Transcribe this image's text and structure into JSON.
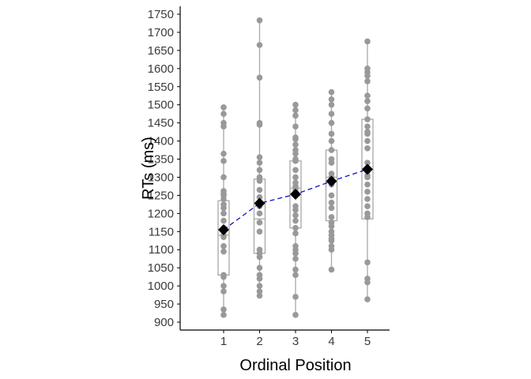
{
  "chart_data": {
    "type": "scatter",
    "xlabel": "Ordinal Position",
    "ylabel": "RTs (ms)",
    "categories": [
      "1",
      "2",
      "3",
      "4",
      "5"
    ],
    "ylim": [
      880,
      1780
    ],
    "yticks": [
      900,
      950,
      1000,
      1050,
      1100,
      1150,
      1200,
      1250,
      1300,
      1350,
      1400,
      1450,
      1500,
      1550,
      1600,
      1650,
      1700,
      1750
    ],
    "grid": false,
    "colors": {
      "points": "#999999",
      "box": "#a8a8a8",
      "mean_marker": "#000000",
      "mean_line": "#1010c8"
    },
    "means": [
      1155,
      1228,
      1253,
      1289,
      1322
    ],
    "boxes": [
      {
        "whisker_low": 920,
        "q1": 1030,
        "median": 1140,
        "q3": 1235,
        "whisker_high": 1493
      },
      {
        "whisker_low": 975,
        "q1": 1090,
        "median": 1185,
        "q3": 1295,
        "whisker_high": 1733
      },
      {
        "whisker_low": 920,
        "q1": 1160,
        "median": 1270,
        "q3": 1345,
        "whisker_high": 1500
      },
      {
        "whisker_low": 1045,
        "q1": 1180,
        "median": 1300,
        "q3": 1375,
        "whisker_high": 1535
      },
      {
        "whisker_low": 963,
        "q1": 1185,
        "median": 1320,
        "q3": 1460,
        "whisker_high": 1675
      }
    ],
    "points": [
      [
        920,
        935,
        985,
        1000,
        1025,
        1030,
        1095,
        1110,
        1135,
        1140,
        1150,
        1160,
        1180,
        1200,
        1215,
        1225,
        1240,
        1250,
        1255,
        1262,
        1300,
        1345,
        1365,
        1440,
        1450,
        1475,
        1493
      ],
      [
        973,
        985,
        1000,
        1020,
        1030,
        1050,
        1080,
        1090,
        1100,
        1150,
        1175,
        1200,
        1220,
        1245,
        1265,
        1290,
        1300,
        1320,
        1340,
        1355,
        1445,
        1450,
        1575,
        1665,
        1733
      ],
      [
        920,
        970,
        1030,
        1045,
        1075,
        1090,
        1100,
        1110,
        1145,
        1160,
        1180,
        1195,
        1210,
        1220,
        1250,
        1265,
        1275,
        1285,
        1300,
        1320,
        1345,
        1350,
        1365,
        1375,
        1390,
        1405,
        1410,
        1440,
        1470,
        1485,
        1500
      ],
      [
        1045,
        1100,
        1110,
        1125,
        1130,
        1140,
        1150,
        1165,
        1175,
        1190,
        1215,
        1230,
        1250,
        1280,
        1290,
        1300,
        1310,
        1340,
        1350,
        1375,
        1400,
        1420,
        1450,
        1475,
        1500,
        1515,
        1535
      ],
      [
        963,
        1010,
        1020,
        1065,
        1190,
        1200,
        1220,
        1240,
        1260,
        1280,
        1300,
        1305,
        1315,
        1325,
        1340,
        1380,
        1400,
        1420,
        1425,
        1440,
        1460,
        1490,
        1510,
        1525,
        1565,
        1580,
        1590,
        1600,
        1675
      ]
    ]
  }
}
